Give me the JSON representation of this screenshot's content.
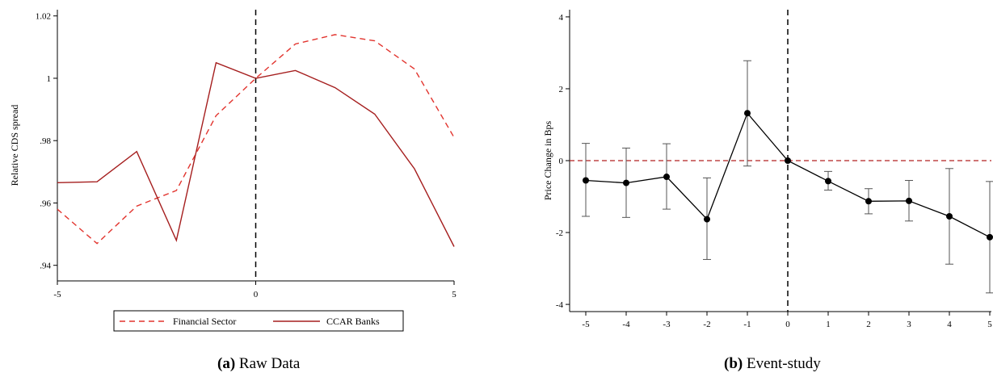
{
  "chart_data": [
    {
      "type": "line",
      "xlabel": "",
      "ylabel": "Relative CDS spread",
      "xlim": [
        -5,
        5
      ],
      "ylim": [
        0.935,
        1.022
      ],
      "x_ticks": [
        -5,
        0,
        5
      ],
      "x_tick_labels": [
        "-5",
        "0",
        "5"
      ],
      "y_ticks": [
        0.94,
        0.96,
        0.98,
        1.0,
        1.02
      ],
      "y_tick_labels": [
        ".94",
        ".96",
        ".98",
        "1",
        "1.02"
      ],
      "event_line_x": 0,
      "legend_position": "bottom",
      "x": [
        -5,
        -4,
        -3,
        -2,
        -1,
        0,
        1,
        2,
        3,
        4,
        5
      ],
      "series": [
        {
          "name": "Financial Sector",
          "color": "#e2342e",
          "style": "dashed",
          "values": [
            0.958,
            0.947,
            0.959,
            0.964,
            0.988,
            1.0,
            1.011,
            1.014,
            1.012,
            1.003,
            0.981
          ]
        },
        {
          "name": "CCAR Banks",
          "color": "#a51e1e",
          "style": "solid",
          "values": [
            0.9665,
            0.9668,
            0.9765,
            0.948,
            1.005,
            1.0,
            1.0025,
            0.997,
            0.9885,
            0.971,
            0.946
          ]
        }
      ]
    },
    {
      "type": "scatter",
      "xlabel": "",
      "ylabel": "Price Change in Bps",
      "xlim": [
        -5,
        5
      ],
      "ylim": [
        -4.2,
        4.2
      ],
      "x_ticks": [
        -5,
        -4,
        -3,
        -2,
        -1,
        0,
        1,
        2,
        3,
        4,
        5
      ],
      "x_tick_labels": [
        "-5",
        "-4",
        "-3",
        "-2",
        "-1",
        "0",
        "1",
        "2",
        "3",
        "4",
        "5"
      ],
      "y_ticks": [
        -4,
        -2,
        0,
        2,
        4
      ],
      "y_tick_labels": [
        "-4",
        "-2",
        "0",
        "2",
        "4"
      ],
      "event_line_x": 0,
      "zero_line_color": "#b22222",
      "x": [
        -5,
        -4,
        -3,
        -2,
        -1,
        0,
        1,
        2,
        3,
        4,
        5
      ],
      "estimates": [
        -0.55,
        -0.62,
        -0.45,
        -1.63,
        1.32,
        0.0,
        -0.57,
        -1.13,
        -1.12,
        -1.55,
        -2.13
      ],
      "ci_lower": [
        -1.55,
        -1.58,
        -1.35,
        -2.75,
        -0.15,
        0.0,
        -0.82,
        -1.48,
        -1.68,
        -2.88,
        -3.68
      ],
      "ci_upper": [
        0.48,
        0.35,
        0.47,
        -0.48,
        2.78,
        0.0,
        -0.3,
        -0.78,
        -0.55,
        -0.22,
        -0.58
      ]
    }
  ],
  "captions": {
    "a_tag": "(a)",
    "a_text": "Raw Data",
    "b_tag": "(b)",
    "b_text": "Event-study"
  }
}
